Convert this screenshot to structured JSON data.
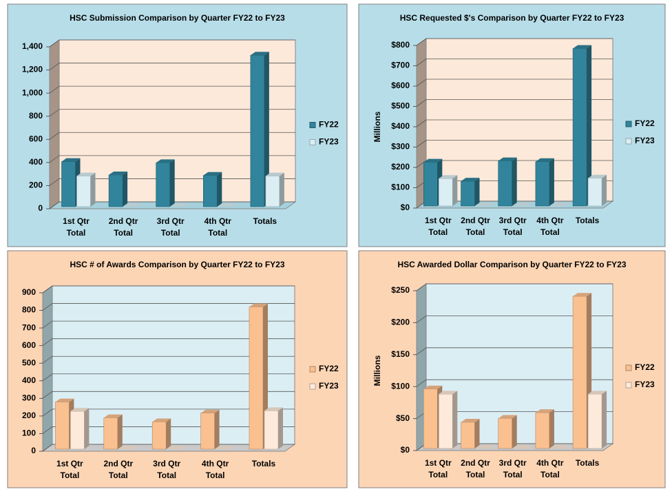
{
  "chart_data": [
    {
      "type": "bar",
      "title": "HSC Submission Comparison by Quarter FY22 to FY23",
      "categories": [
        "1st Qtr Total",
        "2nd Qtr Total",
        "3rd Qtr Total",
        "4th Qtr Total",
        "Totals"
      ],
      "series": [
        {
          "name": "FY22",
          "color": "#31849b",
          "values": [
            390,
            275,
            380,
            270,
            1310
          ]
        },
        {
          "name": "FY23",
          "color": "#daeef3",
          "values": [
            265,
            0,
            0,
            0,
            265
          ]
        }
      ],
      "ylim": [
        0,
        1400
      ],
      "yticks": [
        0,
        200,
        400,
        600,
        800,
        {
          "value": 1000,
          "label": "1,000"
        },
        {
          "value": 1200,
          "label": "1,200"
        },
        {
          "value": 1400,
          "label": "1,400"
        }
      ],
      "grid": true,
      "legend": "right"
    },
    {
      "type": "bar",
      "title": "HSC Requested $'s Comparison by Quarter FY22 to FY23",
      "ylabel": "Millions",
      "categories": [
        "1st Qtr Total",
        "2nd Qtr Total",
        "3rd Qtr Total",
        "4th Qtr Total",
        "Totals"
      ],
      "series": [
        {
          "name": "FY22",
          "color": "#31849b",
          "values": [
            215,
            122,
            222,
            218,
            775
          ]
        },
        {
          "name": "FY23",
          "color": "#daeef3",
          "values": [
            135,
            0,
            0,
            0,
            137
          ]
        }
      ],
      "ylim": [
        0,
        800
      ],
      "yticks": [
        {
          "value": 0,
          "label": "$0"
        },
        {
          "value": 100,
          "label": "$100"
        },
        {
          "value": 200,
          "label": "$200"
        },
        {
          "value": 300,
          "label": "$300"
        },
        {
          "value": 400,
          "label": "$400"
        },
        {
          "value": 500,
          "label": "$500"
        },
        {
          "value": 600,
          "label": "$600"
        },
        {
          "value": 700,
          "label": "$700"
        },
        {
          "value": 800,
          "label": "$800"
        }
      ],
      "grid": true,
      "legend": "right"
    },
    {
      "type": "bar",
      "title": "HSC # of Awards Comparison by Quarter FY22 to FY23",
      "categories": [
        "1st Qtr Total",
        "2nd Qtr Total",
        "3rd Qtr Total",
        "4th Qtr Total",
        "Totals"
      ],
      "series": [
        {
          "name": "FY22",
          "color": "#fac090",
          "values": [
            268,
            178,
            155,
            205,
            808
          ]
        },
        {
          "name": "FY23",
          "color": "#fdeada",
          "values": [
            215,
            0,
            0,
            0,
            218
          ]
        }
      ],
      "ylim": [
        0,
        900
      ],
      "yticks": [
        0,
        100,
        200,
        300,
        400,
        500,
        600,
        700,
        800,
        900
      ],
      "grid": true,
      "legend": "right"
    },
    {
      "type": "bar",
      "title": "HSC Awarded Dollar Comparison by Quarter FY22 to FY23",
      "ylabel": "Millions",
      "categories": [
        "1st Qtr Total",
        "2nd Qtr Total",
        "3rd Qtr Total",
        "4th Qtr Total",
        "Totals"
      ],
      "series": [
        {
          "name": "FY22",
          "color": "#fac090",
          "values": [
            93,
            41,
            47,
            56,
            238
          ]
        },
        {
          "name": "FY23",
          "color": "#fdeada",
          "values": [
            85,
            0,
            0,
            0,
            85
          ]
        }
      ],
      "ylim": [
        0,
        250
      ],
      "yticks": [
        {
          "value": 0,
          "label": "$0"
        },
        {
          "value": 50,
          "label": "$50"
        },
        {
          "value": 100,
          "label": "$100"
        },
        {
          "value": 150,
          "label": "$150"
        },
        {
          "value": 200,
          "label": "$200"
        },
        {
          "value": 250,
          "label": "$250"
        }
      ],
      "grid": true,
      "legend": "right"
    }
  ]
}
